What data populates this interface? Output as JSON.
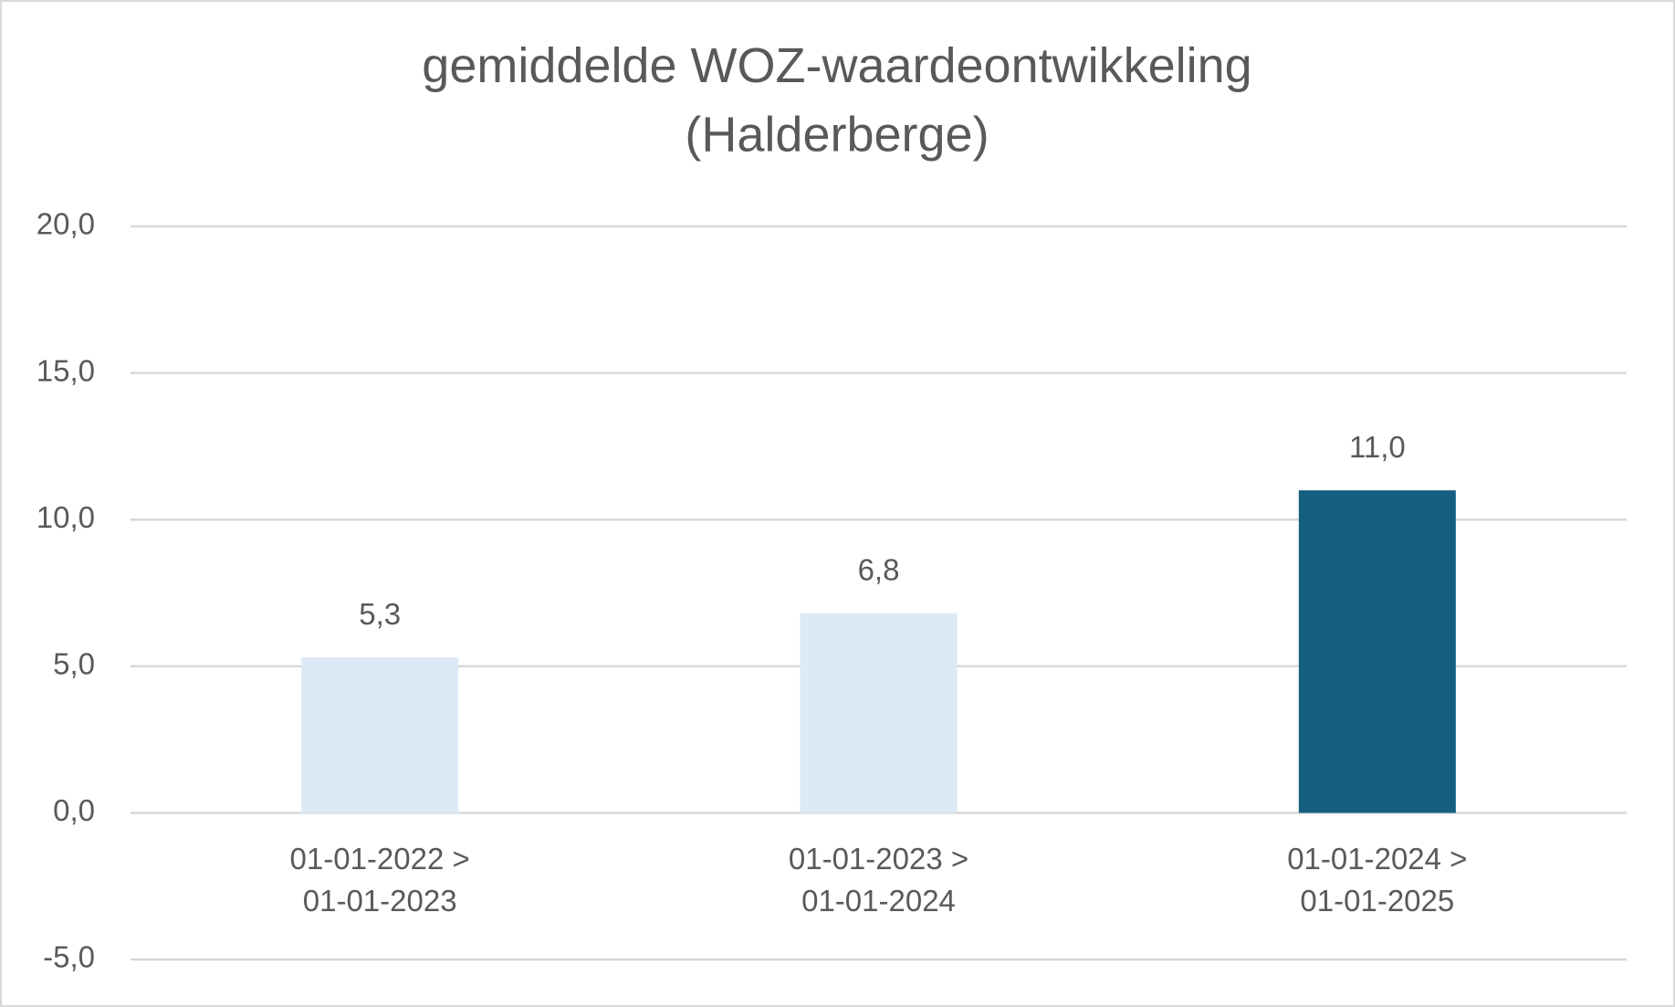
{
  "chart_data": {
    "type": "bar",
    "title": "gemiddelde WOZ-waardeontwikkeling\n(Halderberge)",
    "categories": [
      "01-01-2022 >\n01-01-2023",
      "01-01-2023 >\n01-01-2024",
      "01-01-2024 >\n01-01-2025"
    ],
    "values": [
      5.3,
      6.8,
      11.0
    ],
    "value_labels": [
      "5,3",
      "6,8",
      "11,0"
    ],
    "colors": [
      "#dce9f6",
      "#dce9f6",
      "#165f80"
    ],
    "ylim": [
      -5,
      20
    ],
    "yticks": [
      {
        "value": -5,
        "label": "-5,0"
      },
      {
        "value": 0,
        "label": "0,0"
      },
      {
        "value": 5,
        "label": "5,0"
      },
      {
        "value": 10,
        "label": "10,0"
      },
      {
        "value": 15,
        "label": "15,0"
      },
      {
        "value": 20,
        "label": "20,0"
      }
    ],
    "grid": true
  }
}
